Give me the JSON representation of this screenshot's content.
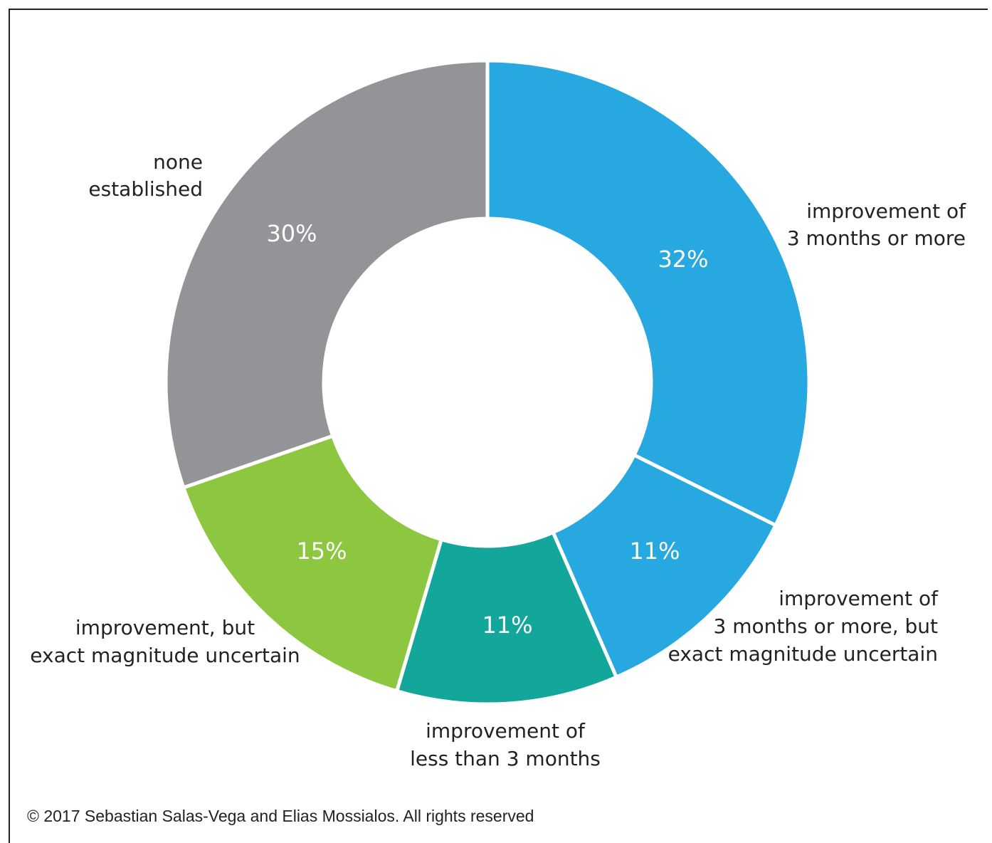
{
  "chart_data": {
    "type": "pie",
    "style": "donut",
    "slices": [
      {
        "label": [
          "improvement of",
          "3 months or more"
        ],
        "value": 32,
        "value_label": "32%",
        "color": "#27a8e0"
      },
      {
        "label": [
          "improvement of",
          "3 months or more, but",
          "exact magnitude uncertain"
        ],
        "value": 11,
        "value_label": "11%",
        "color": "#27a8e0"
      },
      {
        "label": [
          "improvement of",
          "less than 3 months"
        ],
        "value": 11,
        "value_label": "11%",
        "color": "#13a69a"
      },
      {
        "label": [
          "improvement, but",
          "exact magnitude uncertain"
        ],
        "value": 15,
        "value_label": "15%",
        "color": "#8dc63f"
      },
      {
        "label": [
          "none",
          "established"
        ],
        "value": 30,
        "value_label": "30%",
        "color": "#929497"
      }
    ]
  },
  "footer": {
    "copyright": "© 2017 Sebastian Salas-Vega and Elias Mossialos. All rights reserved"
  }
}
